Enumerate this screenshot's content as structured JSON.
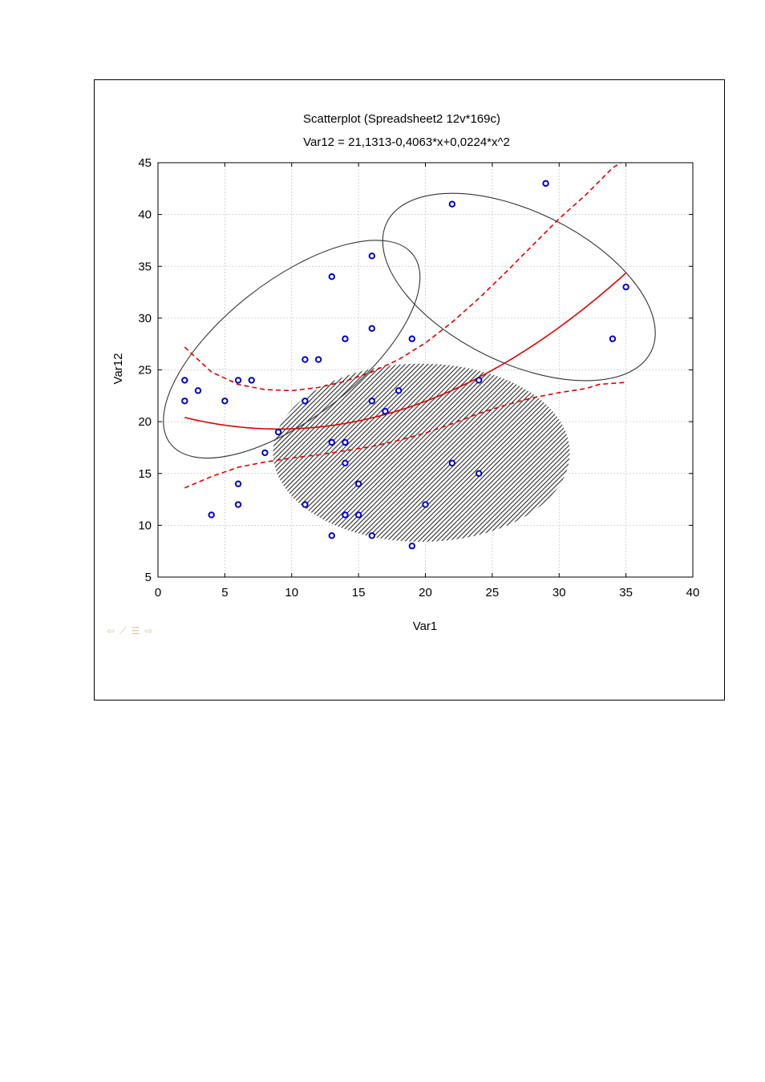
{
  "chart_data": {
    "type": "scatter",
    "title": "Scatterplot (Spreadsheet2 12v*169c)",
    "subtitle": "Var12 = 21,1313-0,4063*x+0,0224*x^2",
    "xlabel": "Var1",
    "ylabel": "Var12",
    "xlim": [
      0,
      40
    ],
    "ylim": [
      5,
      45
    ],
    "xticks": [
      0,
      5,
      10,
      15,
      20,
      25,
      30,
      35,
      40
    ],
    "yticks": [
      5,
      10,
      15,
      20,
      25,
      30,
      35,
      40,
      45
    ],
    "grid": true,
    "points": [
      {
        "x": 2,
        "y": 24
      },
      {
        "x": 2,
        "y": 22
      },
      {
        "x": 3,
        "y": 23
      },
      {
        "x": 4,
        "y": 11
      },
      {
        "x": 5,
        "y": 22
      },
      {
        "x": 6,
        "y": 24
      },
      {
        "x": 6,
        "y": 14
      },
      {
        "x": 6,
        "y": 12
      },
      {
        "x": 7,
        "y": 24
      },
      {
        "x": 8,
        "y": 17
      },
      {
        "x": 9,
        "y": 19
      },
      {
        "x": 11,
        "y": 26
      },
      {
        "x": 11,
        "y": 22
      },
      {
        "x": 11,
        "y": 12
      },
      {
        "x": 12,
        "y": 26
      },
      {
        "x": 13,
        "y": 34
      },
      {
        "x": 13,
        "y": 18
      },
      {
        "x": 13,
        "y": 9
      },
      {
        "x": 14,
        "y": 28
      },
      {
        "x": 14,
        "y": 18
      },
      {
        "x": 14,
        "y": 16
      },
      {
        "x": 14,
        "y": 11
      },
      {
        "x": 15,
        "y": 14
      },
      {
        "x": 15,
        "y": 11
      },
      {
        "x": 16,
        "y": 36
      },
      {
        "x": 16,
        "y": 29
      },
      {
        "x": 16,
        "y": 22
      },
      {
        "x": 16,
        "y": 9
      },
      {
        "x": 17,
        "y": 21
      },
      {
        "x": 18,
        "y": 23
      },
      {
        "x": 19,
        "y": 28
      },
      {
        "x": 19,
        "y": 8
      },
      {
        "x": 20,
        "y": 12
      },
      {
        "x": 22,
        "y": 41
      },
      {
        "x": 22,
        "y": 16
      },
      {
        "x": 24,
        "y": 24
      },
      {
        "x": 24,
        "y": 15
      },
      {
        "x": 29,
        "y": 43
      },
      {
        "x": 34,
        "y": 28
      },
      {
        "x": 35,
        "y": 33
      }
    ],
    "fit": {
      "a": 21.1313,
      "b": -0.4063,
      "c": 0.0224,
      "x_range": [
        2,
        35
      ]
    },
    "confidence_band": {
      "upper": [
        [
          2,
          27.2
        ],
        [
          4,
          24.8
        ],
        [
          6,
          23.6
        ],
        [
          8,
          23.1
        ],
        [
          10,
          23.0
        ],
        [
          12,
          23.3
        ],
        [
          14,
          23.9
        ],
        [
          16,
          24.8
        ],
        [
          18,
          26.0
        ],
        [
          20,
          27.6
        ],
        [
          22,
          29.6
        ],
        [
          24,
          31.9
        ],
        [
          26,
          34.4
        ],
        [
          28,
          37.0
        ],
        [
          30,
          39.6
        ],
        [
          32,
          41.9
        ],
        [
          34,
          44.5
        ],
        [
          35,
          45.3
        ]
      ],
      "lower": [
        [
          2,
          13.6
        ],
        [
          4,
          14.7
        ],
        [
          6,
          15.6
        ],
        [
          8,
          16.1
        ],
        [
          10,
          16.5
        ],
        [
          12,
          16.8
        ],
        [
          14,
          17.2
        ],
        [
          16,
          17.6
        ],
        [
          18,
          18.2
        ],
        [
          20,
          18.9
        ],
        [
          22,
          19.8
        ],
        [
          24,
          20.8
        ],
        [
          26,
          21.6
        ],
        [
          28,
          22.3
        ],
        [
          30,
          22.8
        ],
        [
          32,
          23.2
        ],
        [
          33,
          23.6
        ],
        [
          35,
          23.8
        ]
      ]
    },
    "ellipses": [
      {
        "cx": 19.7,
        "cy": 17.0,
        "rx": 11.1,
        "ry": 8.6,
        "angle_deg": 0,
        "fill": "hatched"
      },
      {
        "cx": 10.0,
        "cy": 27.0,
        "rx": 11.5,
        "ry": 6.6,
        "angle_deg": 38,
        "fill": "none"
      },
      {
        "cx": 27.0,
        "cy": 33.0,
        "rx": 11.0,
        "ry": 7.3,
        "angle_deg": -26,
        "fill": "none"
      }
    ],
    "colors": {
      "points": "#0000cc",
      "fit_line": "#e00000",
      "confidence": "#e00000",
      "ellipse": "#333333",
      "grid": "#c8c8c8"
    }
  },
  "nav_icons": [
    "arrow-left-icon",
    "edit-icon",
    "list-icon",
    "arrow-right-icon"
  ]
}
